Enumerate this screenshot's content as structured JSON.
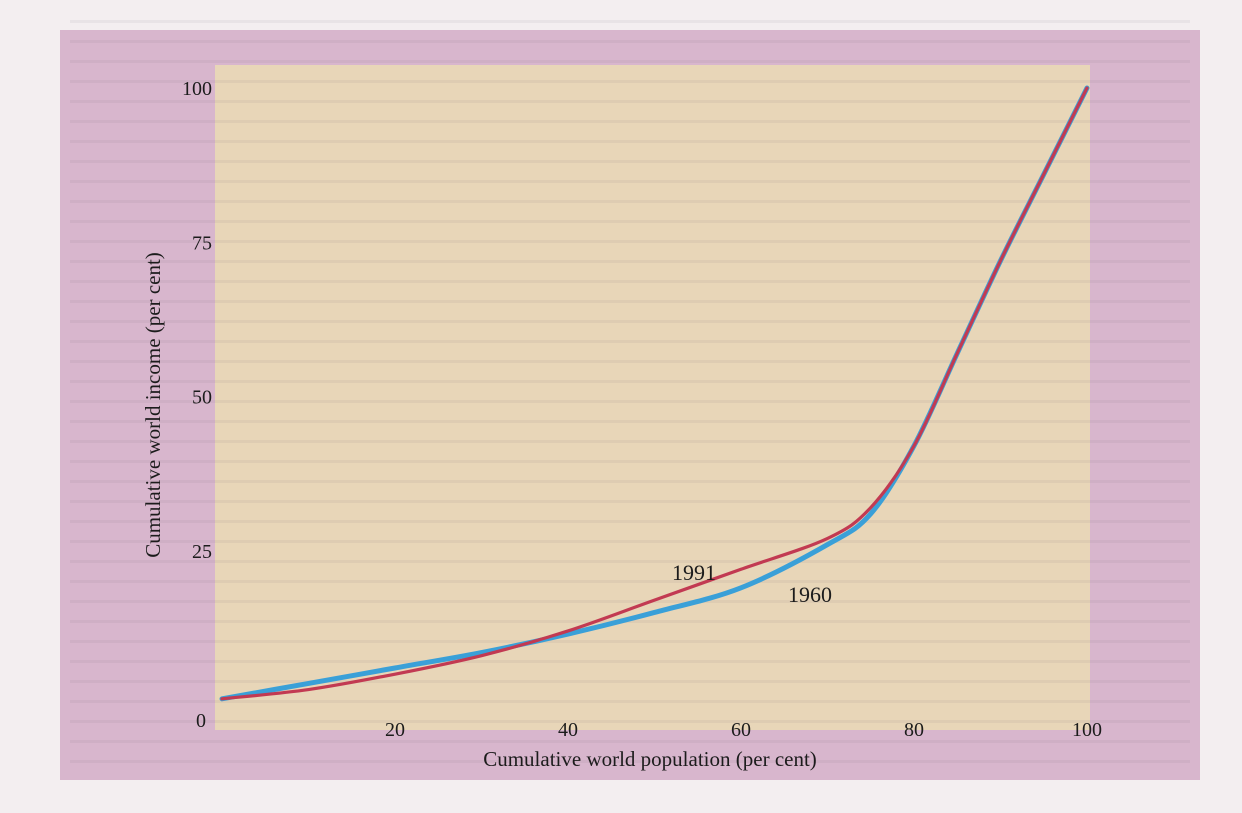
{
  "chart_data": {
    "type": "line",
    "title": "",
    "xlabel": "Cumulative world population (per cent)",
    "ylabel": "Cumulative world income (per cent)",
    "xlim": [
      0,
      100
    ],
    "ylim": [
      0,
      100
    ],
    "x_ticks": [
      "0",
      "20",
      "40",
      "60",
      "80",
      "100"
    ],
    "y_ticks": [
      "0",
      "25",
      "50",
      "75",
      "100"
    ],
    "grid": false,
    "legend": "none",
    "series": [
      {
        "name": "1960",
        "color": "#3aa0d8",
        "points": [
          [
            0,
            1
          ],
          [
            10,
            3.5
          ],
          [
            20,
            6
          ],
          [
            30,
            8.5
          ],
          [
            40,
            11.5
          ],
          [
            50,
            15
          ],
          [
            60,
            19
          ],
          [
            70,
            26
          ],
          [
            75,
            31
          ],
          [
            80,
            42
          ],
          [
            85,
            57
          ],
          [
            90,
            72
          ],
          [
            95,
            86
          ],
          [
            100,
            100
          ]
        ]
      },
      {
        "name": "1991",
        "color": "#c23a52",
        "points": [
          [
            0,
            1
          ],
          [
            10,
            2.5
          ],
          [
            20,
            5
          ],
          [
            30,
            8
          ],
          [
            40,
            12
          ],
          [
            50,
            17
          ],
          [
            60,
            22
          ],
          [
            70,
            27
          ],
          [
            75,
            32
          ],
          [
            80,
            42
          ],
          [
            85,
            57
          ],
          [
            90,
            72
          ],
          [
            95,
            86
          ],
          [
            100,
            100
          ]
        ]
      }
    ]
  },
  "background": {
    "page_color": "#f3eef0",
    "outer_frame_color": "#cfa3c2",
    "inner_panel_color": "#f5f0a8"
  }
}
